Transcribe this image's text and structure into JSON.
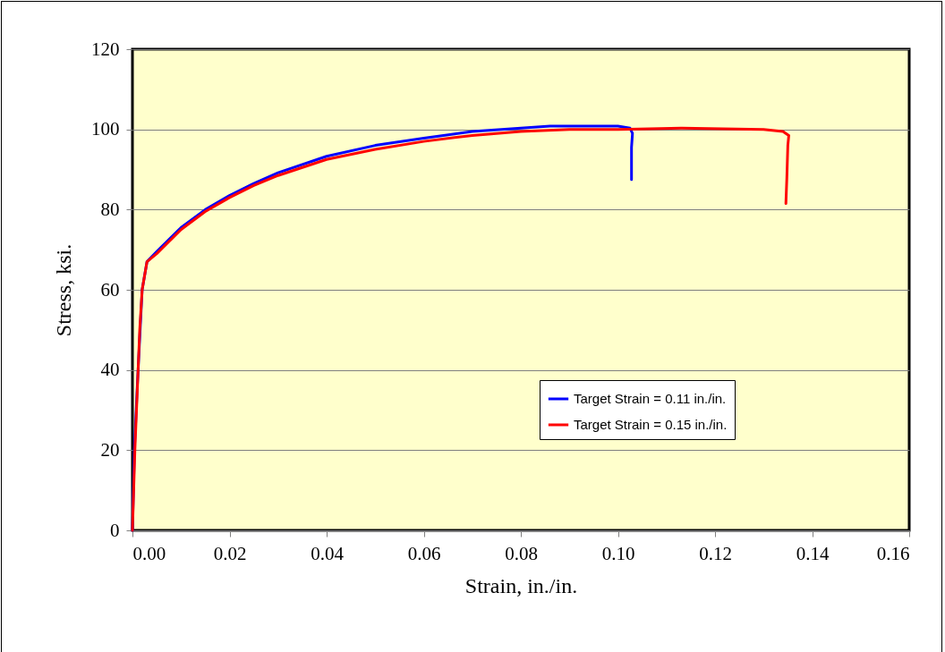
{
  "chart_data": {
    "type": "line",
    "xlabel": "Strain, in./in.",
    "ylabel": "Stress, ksi.",
    "xlim": [
      0,
      0.16
    ],
    "xticks": [
      {
        "value": 0,
        "label": "0.00"
      },
      {
        "value": 0.02,
        "label": "0.02"
      },
      {
        "value": 0.04,
        "label": "0.04"
      },
      {
        "value": 0.06,
        "label": "0.06"
      },
      {
        "value": 0.08,
        "label": "0.08"
      },
      {
        "value": 0.1,
        "label": "0.10"
      },
      {
        "value": 0.12,
        "label": "0.12"
      },
      {
        "value": 0.14,
        "label": "0.14"
      },
      {
        "value": 0.16,
        "label": "0.16"
      }
    ],
    "ylim": [
      0,
      120
    ],
    "yticks": [
      0,
      20,
      40,
      60,
      80,
      100,
      120
    ],
    "grid": "y",
    "legend": "bottom right",
    "line_style": "solid",
    "marker": "none",
    "series": [
      {
        "name": "Target Strain = 0.11 in./in.",
        "color": "#0000ff",
        "x": [
          0,
          0.0004,
          0.001,
          0.002,
          0.003,
          0.005,
          0.01,
          0.015,
          0.02,
          0.025,
          0.03,
          0.04,
          0.05,
          0.06,
          0.07,
          0.08,
          0.086,
          0.1,
          0.1025,
          0.103,
          0.1028,
          0.1028
        ],
        "values": [
          0,
          20,
          36,
          60,
          67,
          69.5,
          75.5,
          80,
          83.5,
          86.5,
          89.2,
          93.3,
          96,
          97.8,
          99.5,
          100.3,
          100.8,
          100.8,
          100.3,
          99,
          95.5,
          87.5
        ]
      },
      {
        "name": "Target Strain = 0.15 in./in.",
        "color": "#ff0000",
        "x": [
          0,
          0.0005,
          0.001,
          0.0015,
          0.002,
          0.003,
          0.005,
          0.01,
          0.015,
          0.02,
          0.025,
          0.03,
          0.04,
          0.05,
          0.06,
          0.07,
          0.08,
          0.09,
          0.1,
          0.113,
          0.13,
          0.134,
          0.1352,
          0.135,
          0.1348,
          0.1346
        ],
        "values": [
          0,
          20,
          35,
          50,
          60,
          67,
          69,
          75,
          79.5,
          83,
          86,
          88.5,
          92.5,
          95,
          97,
          98.5,
          99.5,
          100,
          100,
          100.3,
          100,
          99.5,
          98.5,
          96,
          88,
          81.5
        ]
      }
    ]
  }
}
